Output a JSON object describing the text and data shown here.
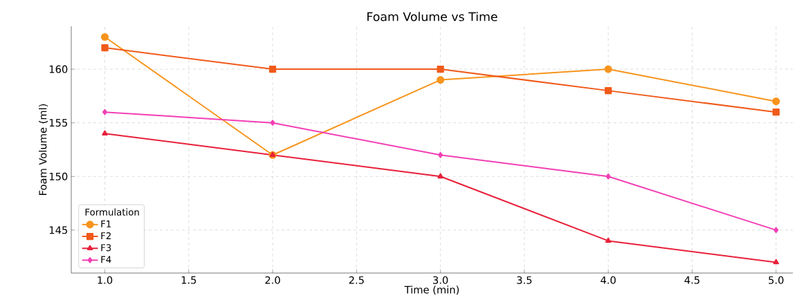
{
  "chart_data": {
    "type": "line",
    "title": "Foam Volume vs Time",
    "xlabel": "Time (min)",
    "ylabel": "Foam Volume (ml)",
    "legend_title": "Formulation",
    "x": [
      1,
      2,
      3,
      4,
      5
    ],
    "series": [
      {
        "name": "F1",
        "color": "#f7941d",
        "marker": "circle",
        "values": [
          163,
          152,
          159,
          160,
          157
        ]
      },
      {
        "name": "F2",
        "color": "#f05a1a",
        "marker": "square",
        "values": [
          162,
          160,
          160,
          158,
          156
        ]
      },
      {
        "name": "F3",
        "color": "#e8203a",
        "marker": "triangle",
        "values": [
          154,
          152,
          150,
          144,
          142
        ]
      },
      {
        "name": "F4",
        "color": "#f23fb5",
        "marker": "diamond",
        "values": [
          156,
          155,
          152,
          150,
          145
        ]
      }
    ],
    "xlim": [
      0.8,
      5.1
    ],
    "ylim": [
      141,
      164
    ],
    "xticks": [
      {
        "value": 1,
        "label": "1.0"
      },
      {
        "value": 1.5,
        "label": "1.5"
      },
      {
        "value": 2,
        "label": "2.0"
      },
      {
        "value": 2.5,
        "label": "2.5"
      },
      {
        "value": 3,
        "label": "3.0"
      },
      {
        "value": 3.5,
        "label": "3.5"
      },
      {
        "value": 4,
        "label": "4.0"
      },
      {
        "value": 4.5,
        "label": "4.5"
      },
      {
        "value": 5,
        "label": "5.0"
      }
    ],
    "yticks": [
      145,
      150,
      155,
      160
    ],
    "grid": true,
    "legend": "bottom left",
    "line_style": "solid"
  }
}
